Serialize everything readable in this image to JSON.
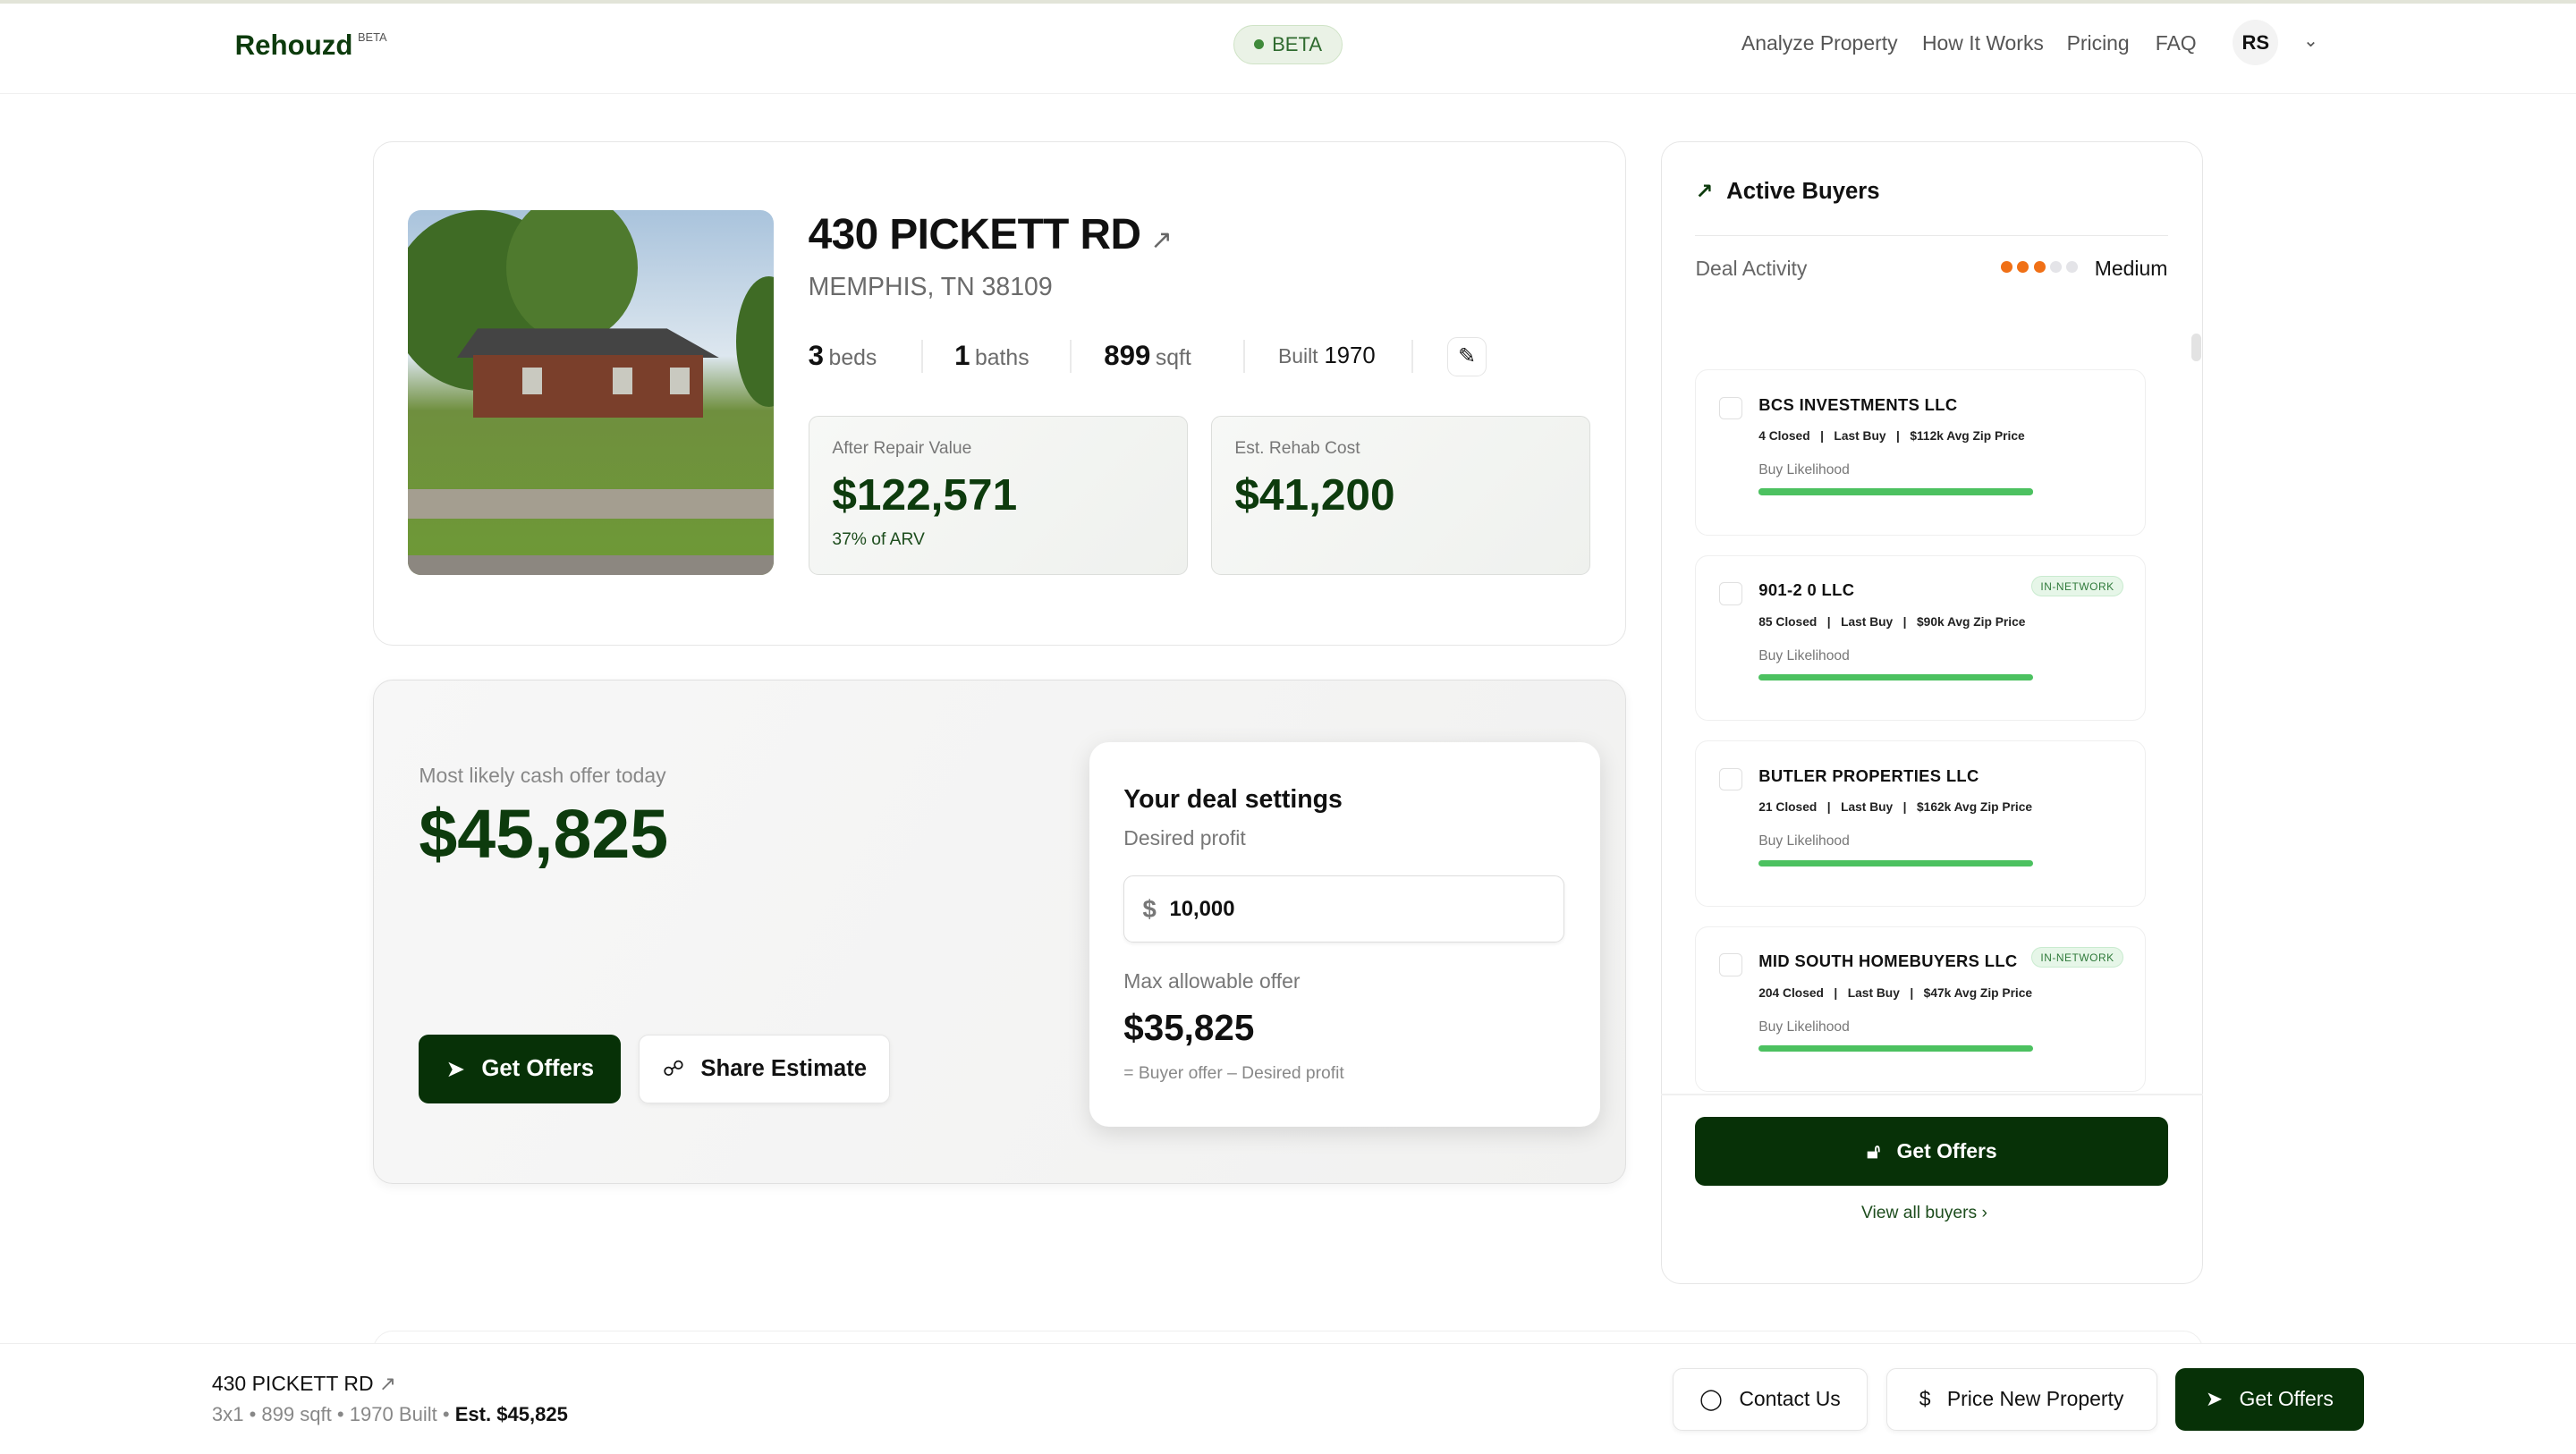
{
  "header": {
    "logo": "Rehouzd",
    "logo_badge": "BETA",
    "beta_pill": "BETA",
    "nav": [
      "Analyze Property",
      "How It Works",
      "Pricing",
      "FAQ"
    ],
    "avatar": "RS"
  },
  "property": {
    "address": "430 PICKETT RD",
    "city": "MEMPHIS, TN 38109",
    "beds": "3",
    "beds_label": "beds",
    "baths": "1",
    "baths_label": "baths",
    "sqft": "899",
    "sqft_label": "sqft",
    "built_label": "Built",
    "built": "1970",
    "arv_label": "After Repair Value",
    "arv": "$122,571",
    "arv_sub": "37% of ARV",
    "rehab_label": "Est. Rehab Cost",
    "rehab": "$41,200"
  },
  "offer": {
    "label": "Most likely cash offer today",
    "value": "$45,825",
    "get_offers": "Get Offers",
    "share": "Share Estimate"
  },
  "deal": {
    "title": "Your deal settings",
    "profit_label": "Desired profit",
    "currency": "$",
    "profit_value": "10,000",
    "mao_label": "Max allowable offer",
    "mao": "$35,825",
    "formula": "= Buyer offer – Desired profit"
  },
  "buyers": {
    "title": "Active Buyers",
    "activity_label": "Deal Activity",
    "activity_level": "Medium",
    "activity_dots": 3,
    "activity_max": 5,
    "colors": {
      "active": "#f07016",
      "inactive": "#e4e4e8"
    },
    "likelihood_label": "Buy Likelihood",
    "items": [
      {
        "name": "BCS INVESTMENTS LLC",
        "meta": "4 Closed   |   Last Buy   |   $112k Avg Zip Price",
        "tag": "",
        "likelihood": 100
      },
      {
        "name": "901-2 0 LLC",
        "meta": "85 Closed   |   Last Buy   |   $90k Avg Zip Price",
        "tag": "IN-NETWORK",
        "likelihood": 100
      },
      {
        "name": "BUTLER PROPERTIES LLC",
        "meta": "21 Closed   |   Last Buy   |   $162k Avg Zip Price",
        "tag": "",
        "likelihood": 100
      },
      {
        "name": "MID SOUTH HOMEBUYERS LLC",
        "meta": "204 Closed   |   Last Buy   |   $47k Avg Zip Price",
        "tag": "IN-NETWORK",
        "likelihood": 100
      }
    ],
    "get_offers": "Get Offers",
    "view_all": "View all buyers"
  },
  "sticky": {
    "address": "430 PICKETT RD",
    "summary": "3x1  •  899 sqft  •  1970 Built  • ",
    "estimate": "Est. $45,825",
    "contact": "Contact Us",
    "price_new": "Price New Property",
    "get_offers": "Get Offers"
  }
}
